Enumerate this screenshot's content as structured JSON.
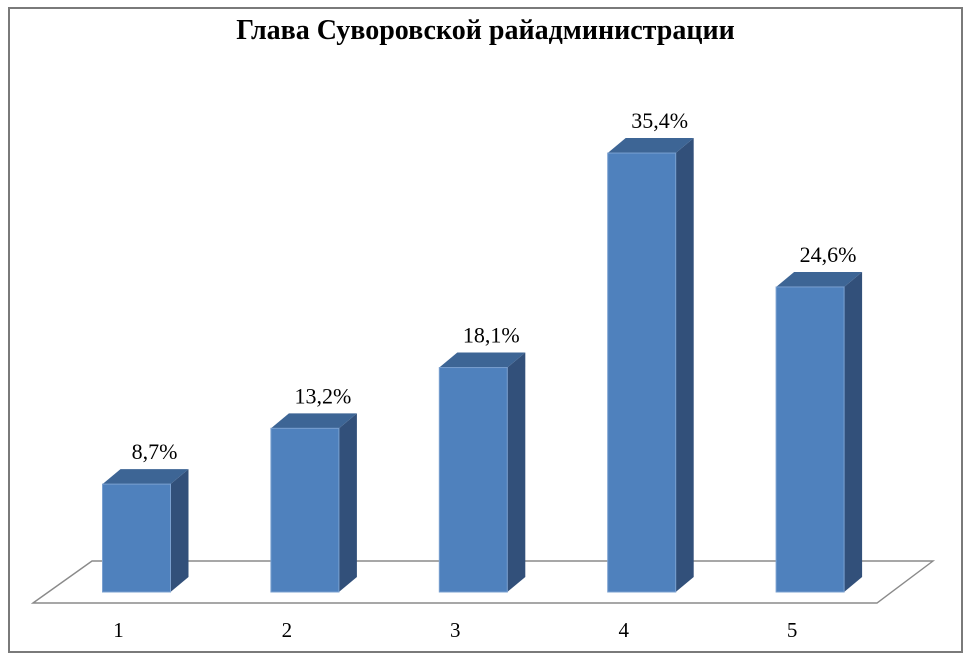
{
  "chart_data": {
    "type": "bar",
    "variant": "3d-column",
    "title": "Глава Суворовской райадминистрации",
    "categories": [
      "1",
      "2",
      "3",
      "4",
      "5"
    ],
    "values": [
      8.7,
      13.2,
      18.1,
      35.4,
      24.6
    ],
    "value_labels": [
      "8,7%",
      "13,2%",
      "18,1%",
      "35,4%",
      "24,6%"
    ],
    "grid": false,
    "legend": null,
    "y_axis_visible": false,
    "colors": {
      "bar_front": "#4f81bd",
      "bar_top": "#3d6595",
      "bar_side": "#32507a",
      "bar_edge_highlight": "#7aa0d0",
      "floor_fill": "#ffffff",
      "floor_stroke": "#8a8a8a",
      "chart_border": "#7a7a7a",
      "text": "#000000",
      "background": "#ffffff"
    }
  }
}
